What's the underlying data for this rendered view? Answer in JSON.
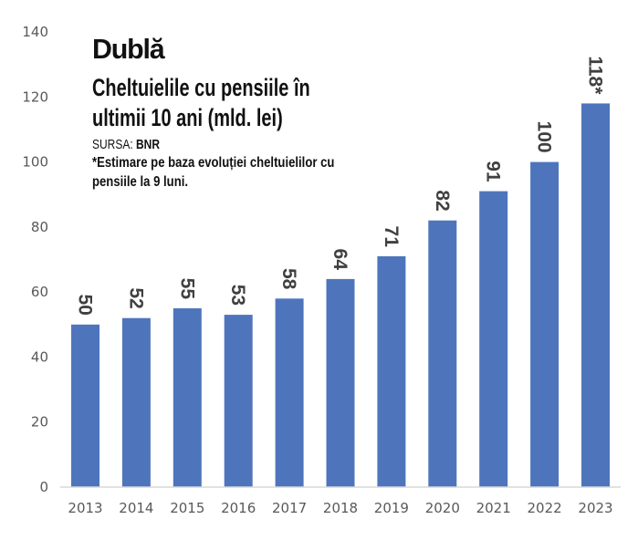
{
  "header": {
    "title": "Dublă",
    "subtitle_line1": "Cheltuielile cu pensiile în",
    "subtitle_line2": "ultimii 10 ani (mld. lei)",
    "source_label": "SURSA: ",
    "source_value": "BNR",
    "note_line1": "*Estimare pe baza evoluției cheltuielilor cu",
    "note_line2": "pensiile la 9 luni."
  },
  "colors": {
    "bar": "#4e75bc",
    "data_label": "#404040",
    "tick_label": "#595959",
    "axis_line": "#d9d9d9"
  },
  "chart_data": {
    "type": "bar",
    "title": "Dublă",
    "subtitle": "Cheltuielile cu pensiile în ultimii 10 ani (mld. lei)",
    "xlabel": "",
    "ylabel": "",
    "categories": [
      "2013",
      "2014",
      "2015",
      "2016",
      "2017",
      "2018",
      "2019",
      "2020",
      "2021",
      "2022",
      "2023"
    ],
    "values": [
      50,
      52,
      55,
      53,
      58,
      64,
      71,
      82,
      91,
      100,
      118
    ],
    "data_labels": [
      "50",
      "52",
      "55",
      "53",
      "58",
      "64",
      "71",
      "82",
      "91",
      "100",
      "118*"
    ],
    "ylim": [
      0,
      140
    ],
    "yticks": [
      0,
      20,
      40,
      60,
      80,
      100,
      120,
      140
    ],
    "ytick_labels": [
      "0",
      "20",
      "40",
      "60",
      "80",
      "100",
      "120",
      "140"
    ],
    "grid": false,
    "legend": "none",
    "annotations": [
      "*Estimare pe baza evoluției cheltuielilor cu pensiile la 9 luni."
    ]
  }
}
